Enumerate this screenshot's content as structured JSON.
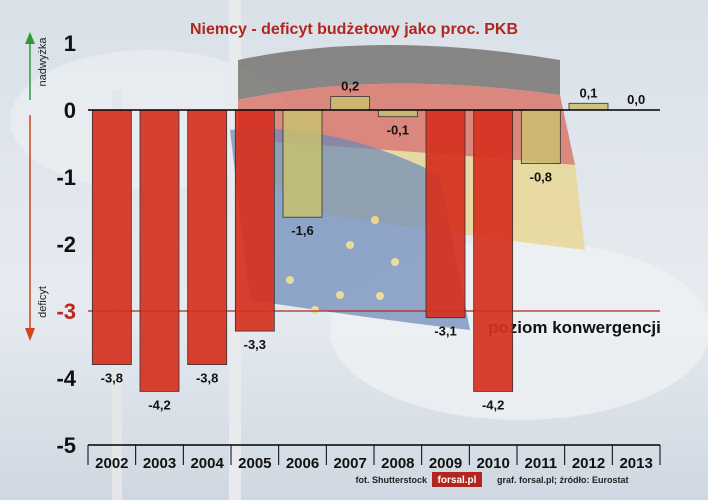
{
  "chart_data": {
    "type": "bar",
    "title": "Niemcy - deficyt budżetowy jako proc. PKB",
    "categories": [
      "2002",
      "2003",
      "2004",
      "2005",
      "2006",
      "2007",
      "2008",
      "2009",
      "2010",
      "2011",
      "2012",
      "2013"
    ],
    "values": [
      -3.8,
      -4.2,
      -3.8,
      -3.3,
      -1.6,
      0.2,
      -0.1,
      -3.1,
      -4.2,
      -0.8,
      0.1,
      0.0
    ],
    "value_labels": [
      "-3,8",
      "-4,2",
      "-3,8",
      "-3,3",
      "-1,6",
      "0,2",
      "-0,1",
      "-3,1",
      "-4,2",
      "-0,8",
      "0,1",
      "0,0"
    ],
    "ylim": [
      -5,
      1
    ],
    "yticks": [
      1,
      0,
      -1,
      -2,
      -3,
      -4,
      -5
    ],
    "ytick_labels": [
      "1",
      "0",
      "-1",
      "-2",
      "-3",
      "-4",
      "-5"
    ],
    "reference_line": {
      "value": -3,
      "label": "poziom konwergencji",
      "color": "#b3261e"
    },
    "side_labels": {
      "up": "nadwyżka",
      "down": "deficyt"
    },
    "colors": {
      "deficit": "#d5311f",
      "minor": "#c8c070",
      "up_arrow": "#2e9a3a",
      "down_arrow": "#d0451c"
    },
    "grid": false
  },
  "footer": {
    "photo_credit": "fot. Shutterstock",
    "logo": "forsal.pl",
    "credits": "graf. forsal.pl;  źródło: Eurostat"
  }
}
